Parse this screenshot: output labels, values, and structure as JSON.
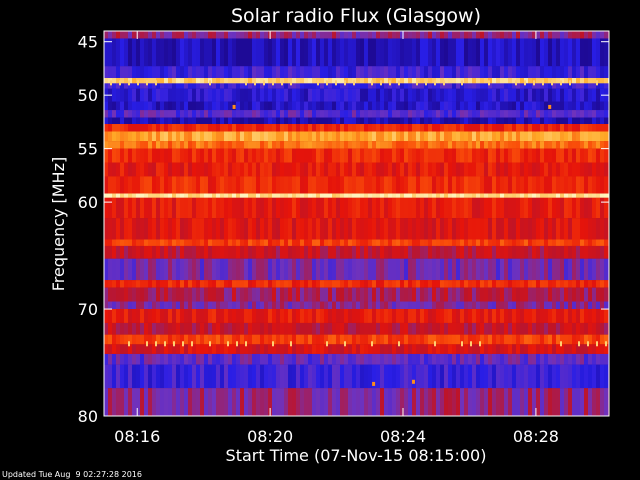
{
  "chart_data": {
    "type": "heatmap",
    "title": "Solar radio Flux (Glasgow)",
    "ylabel": "Frequency [MHz]",
    "xlabel": "Start Time (07-Nov-15 08:15:00)",
    "x_ticks": [
      "08:16",
      "08:20",
      "08:24",
      "08:28"
    ],
    "x_tick_values_min": [
      1,
      5,
      9,
      13
    ],
    "xlim_min": [
      0,
      15.2
    ],
    "y_ticks": [
      "45",
      "50",
      "55",
      "60",
      "70",
      "80"
    ],
    "y_tick_values": [
      45,
      50,
      55,
      60,
      70,
      80
    ],
    "ylim": [
      44,
      80
    ],
    "y_direction": "inverted (low frequency at top)",
    "colormap": "blue-red-yellow intensity",
    "frequency_bands": [
      {
        "from": 44.0,
        "to": 44.7,
        "level": 0.3
      },
      {
        "from": 44.7,
        "to": 47.3,
        "level": 0.05
      },
      {
        "from": 47.3,
        "to": 48.4,
        "level": 0.15
      },
      {
        "from": 48.4,
        "to": 48.9,
        "level": 0.9
      },
      {
        "from": 48.9,
        "to": 49.4,
        "level": 0.15
      },
      {
        "from": 49.4,
        "to": 50.6,
        "level": 0.1
      },
      {
        "from": 50.6,
        "to": 51.4,
        "level": 0.08
      },
      {
        "from": 51.4,
        "to": 52.1,
        "level": 0.2
      },
      {
        "from": 52.1,
        "to": 52.7,
        "level": 0.03
      },
      {
        "from": 52.7,
        "to": 53.4,
        "level": 0.55
      },
      {
        "from": 53.4,
        "to": 54.3,
        "level": 0.8
      },
      {
        "from": 54.3,
        "to": 55.0,
        "level": 0.7
      },
      {
        "from": 55.0,
        "to": 56.3,
        "level": 0.55
      },
      {
        "from": 56.3,
        "to": 57.6,
        "level": 0.5
      },
      {
        "from": 57.6,
        "to": 59.2,
        "level": 0.55
      },
      {
        "from": 59.2,
        "to": 59.6,
        "level": 0.95
      },
      {
        "from": 59.6,
        "to": 61.5,
        "level": 0.5
      },
      {
        "from": 61.5,
        "to": 63.5,
        "level": 0.47
      },
      {
        "from": 63.5,
        "to": 64.1,
        "level": 0.6
      },
      {
        "from": 64.1,
        "to": 65.3,
        "level": 0.4
      },
      {
        "from": 65.3,
        "to": 67.3,
        "level": 0.25
      },
      {
        "from": 67.3,
        "to": 68.0,
        "level": 0.55
      },
      {
        "from": 68.0,
        "to": 69.3,
        "level": 0.35
      },
      {
        "from": 69.3,
        "to": 70.0,
        "level": 0.28
      },
      {
        "from": 70.0,
        "to": 71.3,
        "level": 0.5
      },
      {
        "from": 71.3,
        "to": 72.4,
        "level": 0.4
      },
      {
        "from": 72.4,
        "to": 73.3,
        "level": 0.6
      },
      {
        "from": 73.3,
        "to": 74.2,
        "level": 0.45
      },
      {
        "from": 74.2,
        "to": 75.2,
        "level": 0.22
      },
      {
        "from": 75.2,
        "to": 77.4,
        "level": 0.15
      },
      {
        "from": 77.4,
        "to": 80.0,
        "level": 0.3
      }
    ],
    "spike_rows_mhz": [
      48.8,
      73.2
    ],
    "isolated_spots": [
      {
        "t_min": 3.9,
        "f_mhz": 51.1
      },
      {
        "t_min": 13.4,
        "f_mhz": 51.1
      },
      {
        "t_min": 8.1,
        "f_mhz": 77.0
      },
      {
        "t_min": 9.3,
        "f_mhz": 76.8
      }
    ]
  },
  "footer": {
    "updated": "Updated Tue Aug  9 02:27:28 2016"
  }
}
